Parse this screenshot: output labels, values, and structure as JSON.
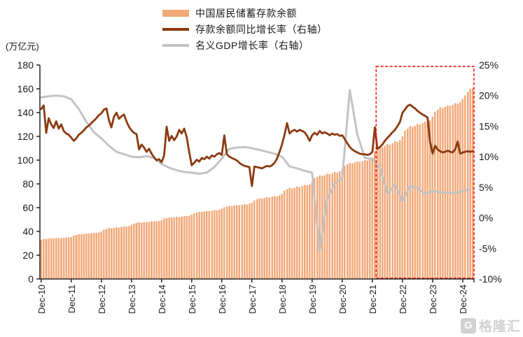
{
  "colors": {
    "bar": "#F2A878",
    "deposit_growth_line": "#8B3A10",
    "gdp_growth_line": "#C3C3C3",
    "highlight_box": "#FF0000",
    "axis": "#262626",
    "text": "#1a1a1a",
    "watermark": "#c9c9c9"
  },
  "legend": {
    "items": [
      {
        "label": "中国居民储蓄存款余额",
        "swatch": "bar",
        "color": "#F2A878"
      },
      {
        "label": "存款余额同比增长率（右轴）",
        "swatch": "line",
        "color": "#8B3A10"
      },
      {
        "label": "名义GDP增长率（右轴）",
        "swatch": "line",
        "color": "#C3C3C3"
      }
    ]
  },
  "watermark": {
    "icon": "G",
    "text": "格隆汇"
  },
  "chart_data": {
    "type": "combo",
    "x_frequency": "monthly",
    "x_start": "Dec-2010",
    "x_end": "Apr-2025",
    "x_tick_month_indices": [
      0,
      12,
      24,
      36,
      48,
      60,
      72,
      84,
      96,
      108,
      120,
      132,
      144,
      156,
      168
    ],
    "x_tick_labels": [
      "Dec-10",
      "Dec-11",
      "Dec-12",
      "Dec-13",
      "Dec-14",
      "Dec-15",
      "Dec-16",
      "Dec-17",
      "Dec-18",
      "Dec-19",
      "Dec-20",
      "Dec-21",
      "Dec-22",
      "Dec-23",
      "Dec-24"
    ],
    "left_axis": {
      "title": "(万亿元)",
      "min": 0,
      "max": 180,
      "step": 20,
      "tick_labels": [
        "0",
        "20",
        "40",
        "60",
        "80",
        "100",
        "120",
        "140",
        "160",
        "180"
      ]
    },
    "right_axis": {
      "min": -10,
      "max": 25,
      "step": 5,
      "tick_labels": [
        "-10%",
        "-5%",
        "0%",
        "5%",
        "10%",
        "15%",
        "20%",
        "25%"
      ]
    },
    "grid": false,
    "legend_position": "top-center",
    "highlight_box": {
      "from_month_index": 134,
      "to": "plot-right-edge",
      "note": "red dashed rectangle over Feb-22 onward",
      "color": "#FF0000"
    },
    "series": [
      {
        "name": "中国居民储蓄存款余额",
        "type": "bar",
        "axis": "left",
        "unit": "万亿元",
        "color": "#F2A878",
        "values": [
          33.0,
          33.6,
          33.9,
          34.2,
          34.1,
          34.2,
          34.4,
          34.4,
          34.5,
          34.7,
          34.7,
          34.9,
          35.3,
          36.6,
          37.2,
          37.7,
          37.6,
          37.8,
          38.3,
          38.1,
          38.4,
          38.9,
          38.7,
          39.2,
          40.0,
          41.5,
          42.2,
          42.9,
          42.6,
          43.0,
          43.5,
          43.3,
          43.7,
          44.2,
          44.0,
          44.5,
          45.5,
          46.6,
          47.1,
          47.6,
          47.4,
          47.7,
          48.0,
          47.9,
          48.2,
          48.5,
          48.4,
          48.8,
          49.5,
          50.8,
          51.3,
          51.8,
          51.7,
          51.9,
          52.3,
          52.2,
          52.5,
          52.9,
          52.8,
          53.2,
          54.0,
          55.4,
          56.0,
          56.6,
          56.4,
          56.7,
          57.2,
          57.0,
          57.4,
          57.8,
          57.7,
          58.1,
          59.0,
          60.4,
          61.0,
          61.6,
          61.4,
          61.7,
          62.2,
          62.0,
          62.4,
          62.8,
          62.7,
          63.1,
          64.0,
          66.1,
          67.0,
          67.9,
          67.6,
          68.1,
          68.7,
          68.5,
          69.0,
          69.7,
          69.5,
          70.2,
          71.5,
          74.3,
          75.5,
          76.7,
          76.3,
          76.9,
          77.8,
          77.5,
          78.2,
          79.1,
          78.8,
          79.7,
          81.5,
          84.6,
          85.9,
          87.2,
          86.8,
          87.4,
          88.4,
          88.1,
          88.9,
          89.9,
          89.5,
          90.5,
          92.5,
          95.3,
          96.5,
          97.7,
          97.3,
          97.9,
          98.8,
          98.5,
          99.2,
          100.1,
          99.8,
          100.7,
          102.5,
          107.4,
          109.5,
          111.6,
          110.9,
          112.0,
          113.5,
          113.0,
          114.2,
          115.8,
          115.3,
          116.9,
          120.0,
          124.6,
          126.6,
          128.6,
          127.9,
          128.9,
          130.4,
          129.9,
          131.1,
          132.5,
          132.0,
          133.5,
          136.5,
          140.7,
          142.5,
          144.3,
          143.7,
          144.6,
          145.9,
          145.5,
          146.6,
          147.9,
          147.5,
          148.8,
          151.5,
          154.5,
          157.5,
          160.0,
          161.0
        ]
      },
      {
        "name": "存款余额同比增长率（右轴）",
        "type": "line",
        "axis": "right",
        "unit": "%",
        "color": "#8B3A10",
        "values": [
          17.8,
          18.4,
          13.9,
          16.3,
          15.3,
          14.7,
          15.8,
          14.6,
          15.3,
          14.2,
          13.8,
          13.6,
          13.1,
          12.6,
          13.0,
          13.6,
          13.9,
          14.3,
          14.8,
          15.1,
          15.5,
          15.9,
          16.3,
          16.8,
          17.1,
          17.7,
          17.9,
          16.0,
          14.8,
          16.5,
          17.2,
          16.2,
          16.6,
          16.9,
          15.8,
          14.9,
          14.3,
          13.9,
          13.7,
          11.2,
          12.0,
          11.5,
          10.8,
          11.3,
          10.5,
          9.9,
          9.4,
          9.6,
          9.1,
          10.2,
          14.9,
          12.6,
          13.4,
          12.7,
          13.3,
          14.4,
          13.8,
          14.6,
          13.2,
          10.8,
          8.6,
          9.0,
          9.5,
          9.2,
          9.8,
          9.6,
          10.0,
          9.7,
          10.2,
          10.0,
          10.4,
          10.6,
          10.3,
          13.5,
          10.4,
          10.0,
          9.8,
          9.6,
          9.4,
          9.0,
          8.7,
          8.5,
          8.4,
          8.3,
          5.2,
          8.4,
          8.3,
          8.2,
          8.1,
          8.3,
          8.5,
          8.4,
          8.6,
          9.0,
          9.7,
          10.8,
          12.0,
          13.6,
          15.5,
          13.8,
          14.2,
          14.4,
          14.1,
          14.4,
          14.2,
          14.0,
          13.4,
          12.6,
          13.5,
          13.9,
          13.6,
          14.2,
          13.8,
          14.0,
          13.8,
          13.5,
          13.8,
          13.6,
          13.7,
          13.4,
          13.5,
          12.9,
          12.2,
          11.6,
          11.2,
          10.9,
          10.7,
          10.5,
          10.4,
          10.4,
          10.3,
          10.4,
          10.8,
          14.8,
          11.3,
          11.6,
          12.0,
          12.6,
          13.1,
          13.5,
          14.0,
          14.4,
          15.0,
          15.7,
          17.2,
          17.7,
          18.3,
          18.5,
          18.2,
          17.9,
          17.5,
          17.2,
          16.9,
          16.7,
          16.4,
          12.4,
          10.5,
          11.8,
          11.2,
          10.9,
          10.7,
          10.8,
          11.0,
          10.8,
          10.7,
          11.2,
          12.5,
          10.5,
          10.7,
          10.8,
          10.9,
          10.8,
          10.9
        ]
      },
      {
        "name": "名义GDP增长率（右轴）",
        "type": "line",
        "axis": "right",
        "unit": "%",
        "color": "#C3C3C3",
        "frequency": "quarterly",
        "x_month_step": 3,
        "values": [
          19.7,
          19.9,
          20.0,
          19.9,
          19.4,
          17.8,
          15.7,
          14.0,
          13.0,
          11.8,
          10.8,
          10.4,
          10.0,
          9.9,
          10.1,
          9.8,
          8.8,
          8.2,
          7.8,
          7.5,
          7.4,
          7.2,
          7.4,
          8.3,
          9.7,
          11.3,
          11.5,
          11.6,
          11.4,
          11.1,
          10.8,
          10.5,
          10.0,
          8.4,
          8.1,
          7.7,
          7.4,
          -5.4,
          3.1,
          5.6,
          6.5,
          20.9,
          13.6,
          9.8,
          9.6,
          8.2,
          3.9,
          5.5,
          2.7,
          5.2,
          4.9,
          3.9,
          4.4,
          4.2,
          4.1,
          4.0,
          4.4,
          4.7
        ]
      }
    ]
  }
}
